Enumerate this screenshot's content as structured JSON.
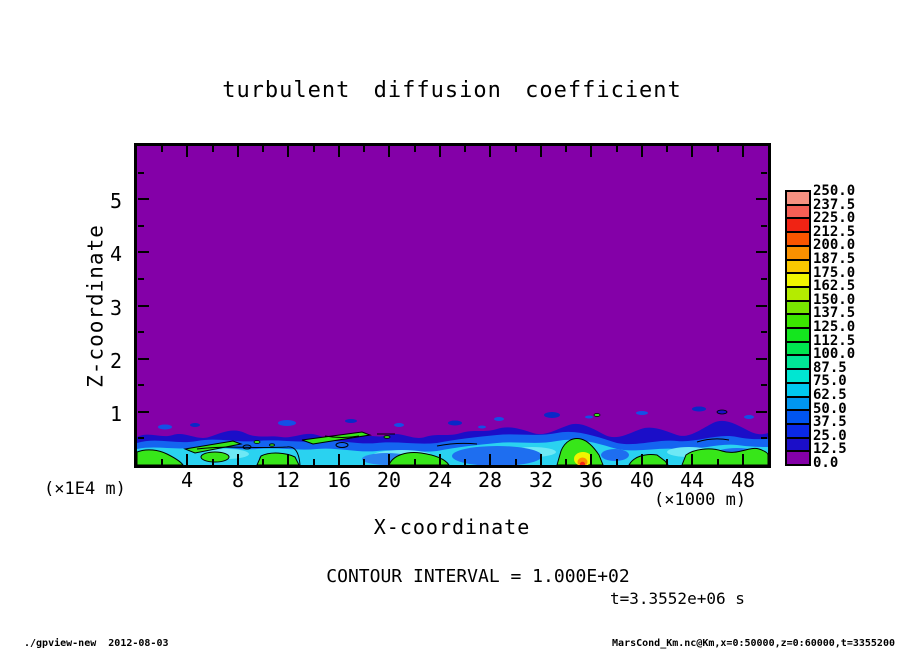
{
  "title": "turbulent diffusion coefficient",
  "axes": {
    "x": {
      "label": "X-coordinate",
      "unit_note": "(×1000 m)",
      "min": 0,
      "max": 50,
      "major_ticks": [
        4,
        8,
        12,
        16,
        20,
        24,
        28,
        32,
        36,
        40,
        44,
        48
      ],
      "minor_tick_step": 2
    },
    "z": {
      "label": "Z-coordinate",
      "unit_note": "(×1E4 m)",
      "min": 0,
      "max": 6,
      "major_ticks": [
        1,
        2,
        3,
        4,
        5
      ],
      "minor_tick_step": 0.5
    }
  },
  "annotations": {
    "contour_interval": "CONTOUR INTERVAL = 1.000E+02",
    "time_label": "t=3.3552e+06 s"
  },
  "footer": {
    "left": "./gpview-new  2012-08-03",
    "right": "MarsCond_Km.nc@Km,x=0:50000,z=0:60000,t=3355200"
  },
  "colorbar": {
    "tick_labels_top_to_bottom": [
      "250.0",
      "237.5",
      "225.0",
      "212.5",
      "200.0",
      "187.5",
      "175.0",
      "162.5",
      "150.0",
      "137.5",
      "125.0",
      "112.5",
      "100.0",
      "87.5",
      "75.0",
      "62.5",
      "50.0",
      "37.5",
      "25.0",
      "12.5",
      "0.0"
    ],
    "cell_colors_top_to_bottom": [
      "#f79181",
      "#f55f55",
      "#f02314",
      "#fa5500",
      "#fa9100",
      "#fac800",
      "#f0f500",
      "#b4eb00",
      "#78e600",
      "#3ce600",
      "#14e61e",
      "#00e650",
      "#00e696",
      "#00e6d2",
      "#00c8f0",
      "#0096f0",
      "#0055f0",
      "#0a28e6",
      "#1b0ec8",
      "#8400a8"
    ]
  },
  "colors": {
    "field_background": "#8400a8",
    "frame": "#000000",
    "page_background": "#ffffff"
  },
  "chart_data": {
    "type": "heatmap",
    "title": "turbulent diffusion coefficient",
    "xlabel": "X-coordinate (×1000 m)",
    "ylabel": "Z-coordinate (×1E4 m)",
    "x_range": [
      0,
      50
    ],
    "z_range": [
      0,
      6
    ],
    "contour_interval": 100.0,
    "time": "t=3.3552e+06 s",
    "levels": [
      0,
      12.5,
      25,
      37.5,
      50,
      62.5,
      75,
      87.5,
      100,
      112.5,
      125,
      137.5,
      150,
      162.5,
      175,
      187.5,
      200,
      212.5,
      225,
      237.5,
      250
    ],
    "legend_position": "right",
    "field_summary": {
      "background_value": 0,
      "description": "Diffusion coefficient Km is ~0 (purple) through most of the domain; a shallow turbulent boundary layer below z ≈ 0.6-0.9 ×1E4 m holds values 25-150 (blue/cyan/green, black 100-contours around green patches), with an isolated surface maximum ≈ 250 (yellow-orange-red spot) near x = 36 ×1000 m and small detached eddies of 25-50 just above the layer top.",
      "x_samples": [
        0,
        2,
        4,
        6,
        8,
        10,
        12,
        14,
        16,
        18,
        20,
        22,
        24,
        26,
        28,
        30,
        32,
        34,
        36,
        38,
        40,
        42,
        44,
        46,
        48,
        50
      ],
      "layer_top_height": [
        0.7,
        0.75,
        0.7,
        0.65,
        0.7,
        0.65,
        0.7,
        0.75,
        0.7,
        0.65,
        0.6,
        0.65,
        0.7,
        0.65,
        0.7,
        0.75,
        0.8,
        0.75,
        0.8,
        0.7,
        0.85,
        0.8,
        0.7,
        0.75,
        0.8,
        0.9
      ],
      "near_surface_max": [
        125,
        125,
        100,
        100,
        125,
        100,
        125,
        100,
        125,
        100,
        75,
        100,
        100,
        125,
        125,
        100,
        100,
        150,
        250,
        125,
        100,
        125,
        125,
        100,
        125,
        125
      ]
    }
  }
}
